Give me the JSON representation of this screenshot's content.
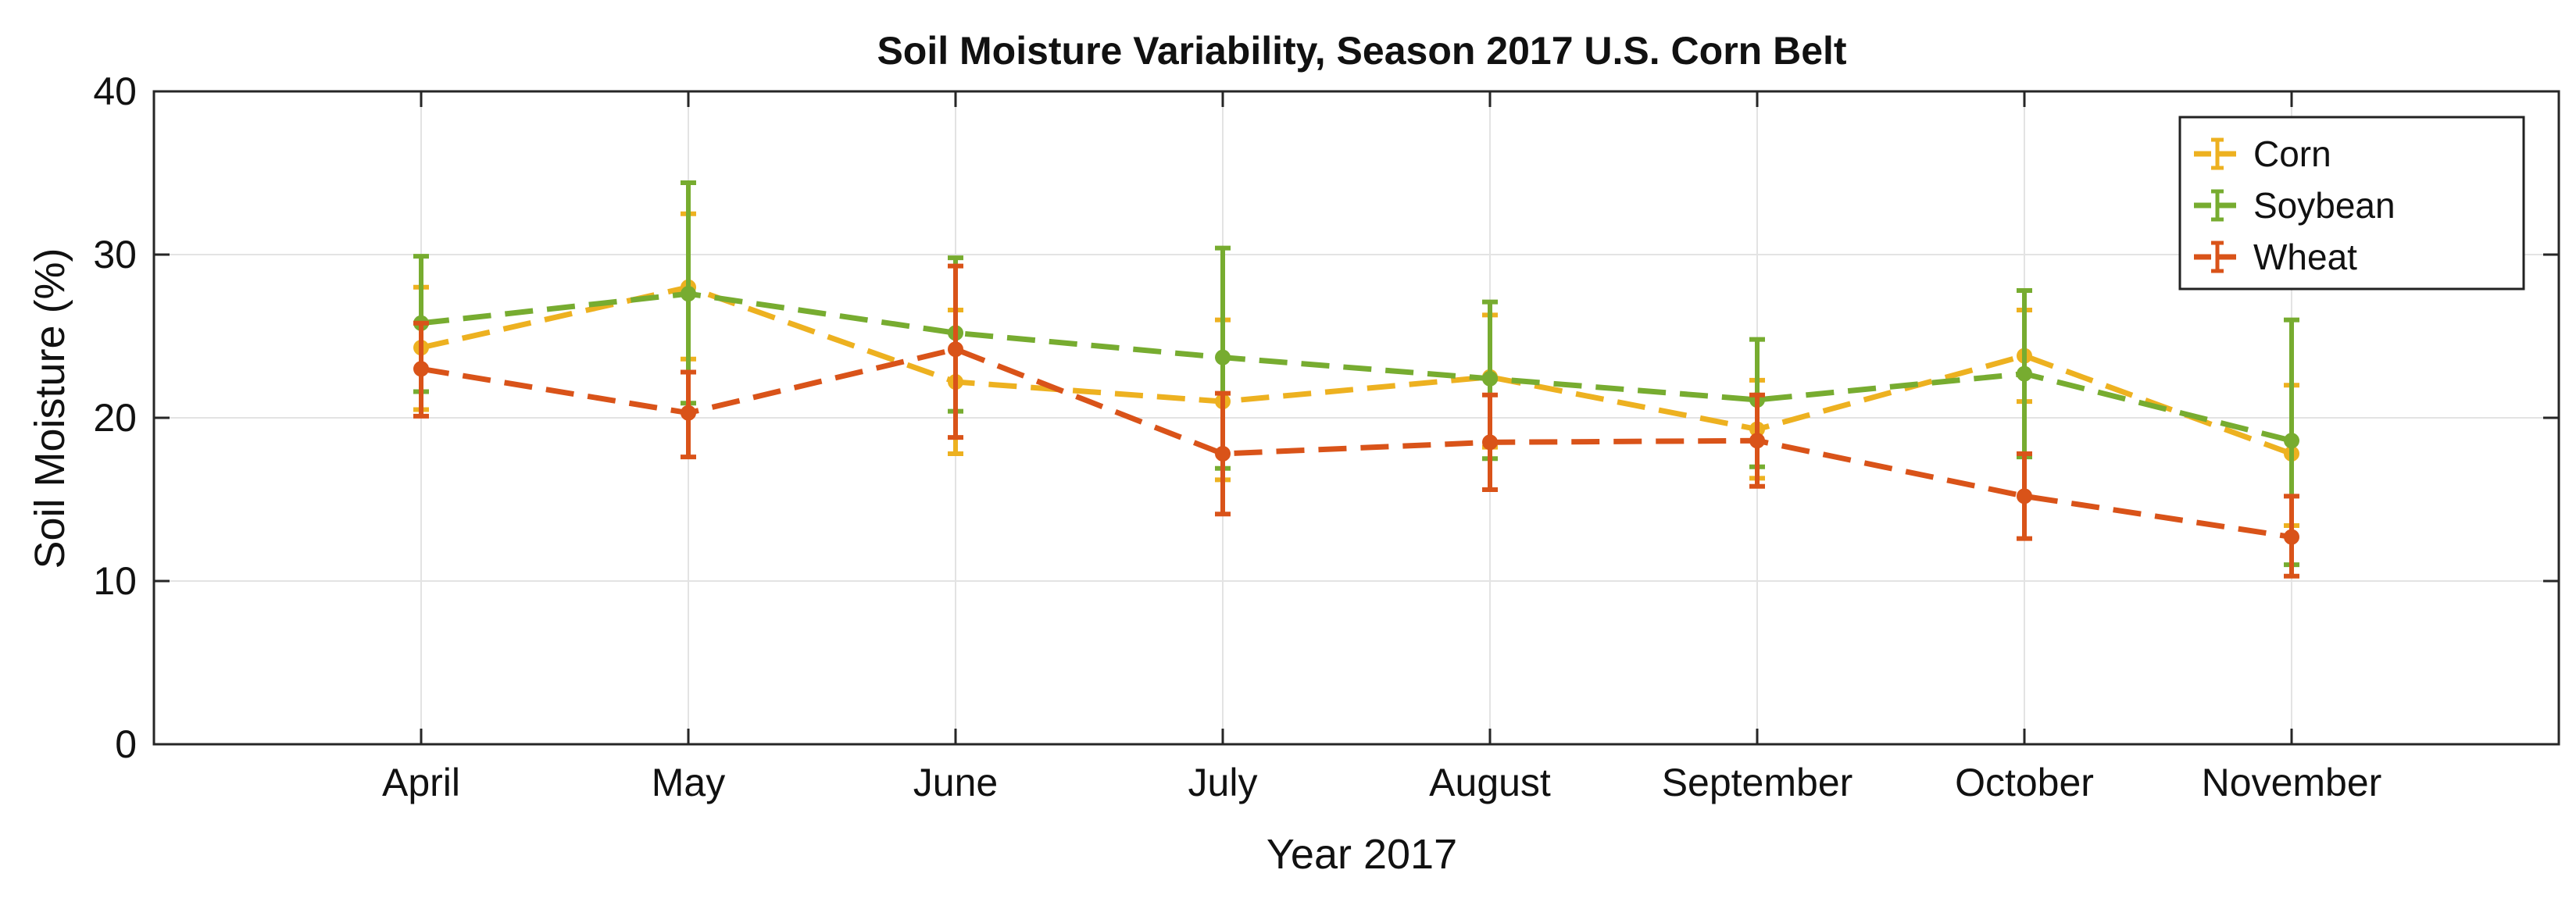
{
  "chart_data": {
    "type": "line",
    "title": "Soil Moisture Variability, Season 2017 U.S. Corn Belt",
    "xlabel": "Year 2017",
    "ylabel": "Soil Moisture (%)",
    "categories": [
      "April",
      "May",
      "June",
      "July",
      "August",
      "September",
      "October",
      "November"
    ],
    "ylim": [
      0,
      40
    ],
    "yticks": [
      0,
      10,
      20,
      30,
      40
    ],
    "grid": true,
    "legend_position": "top-right",
    "series": [
      {
        "name": "Corn",
        "color": "#EDB120",
        "values": [
          24.3,
          28.0,
          22.2,
          21.0,
          22.5,
          19.3,
          23.8,
          17.8
        ],
        "lower": [
          20.5,
          23.6,
          17.8,
          16.2,
          18.2,
          16.3,
          21.0,
          13.4
        ],
        "upper": [
          28.0,
          32.5,
          26.6,
          26.0,
          26.3,
          22.3,
          26.6,
          22.0
        ]
      },
      {
        "name": "Soybean",
        "color": "#77AC30",
        "values": [
          25.8,
          27.6,
          25.2,
          23.7,
          22.4,
          21.1,
          22.7,
          18.6
        ],
        "lower": [
          21.6,
          20.9,
          20.4,
          16.9,
          17.5,
          17.0,
          17.6,
          11.0
        ],
        "upper": [
          29.9,
          34.4,
          29.8,
          30.4,
          27.1,
          24.8,
          27.8,
          26.0
        ]
      },
      {
        "name": "Wheat",
        "color": "#D95319",
        "values": [
          23.0,
          20.3,
          24.2,
          17.8,
          18.5,
          18.6,
          15.2,
          12.7
        ],
        "lower": [
          20.1,
          17.6,
          18.8,
          14.1,
          15.6,
          15.8,
          12.6,
          10.3
        ],
        "upper": [
          25.8,
          22.8,
          29.3,
          21.5,
          21.4,
          21.4,
          17.8,
          15.2
        ]
      }
    ]
  }
}
